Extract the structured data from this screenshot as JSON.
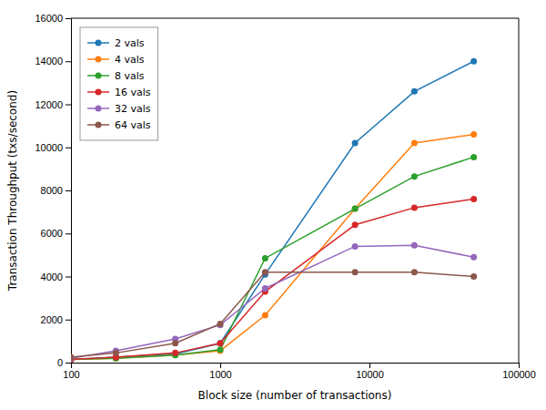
{
  "chart_data": {
    "type": "line",
    "xlabel": "Block size (number of transactions)",
    "ylabel": "Transaction Throughput (txs/second)",
    "x": [
      100,
      200,
      500,
      1000,
      2000,
      8000,
      20000,
      50000
    ],
    "series": [
      {
        "name": "2 vals",
        "values": [
          150,
          250,
          400,
          900,
          4100,
          10200,
          12600,
          14000
        ]
      },
      {
        "name": "4 vals",
        "values": [
          150,
          200,
          350,
          550,
          2200,
          7150,
          10200,
          10600
        ]
      },
      {
        "name": "8 vals",
        "values": [
          150,
          200,
          350,
          600,
          4850,
          7150,
          8650,
          9550
        ]
      },
      {
        "name": "16 vals",
        "values": [
          150,
          250,
          450,
          900,
          3300,
          6400,
          7200,
          7600
        ]
      },
      {
        "name": "32 vals",
        "values": [
          200,
          550,
          1100,
          1750,
          3450,
          5400,
          5450,
          4900
        ]
      },
      {
        "name": "64 vals",
        "values": [
          250,
          450,
          900,
          1800,
          4200,
          4200,
          4200,
          4000
        ]
      }
    ],
    "log": "x",
    "xlim": [
      100,
      100000
    ],
    "xticks": [
      100,
      1000,
      10000,
      100000
    ],
    "ylim": [
      0,
      16000
    ],
    "yticks": [
      0,
      2000,
      4000,
      6000,
      8000,
      10000,
      12000,
      14000,
      16000
    ],
    "legend": "upper left",
    "marker": "o",
    "grid": false
  }
}
